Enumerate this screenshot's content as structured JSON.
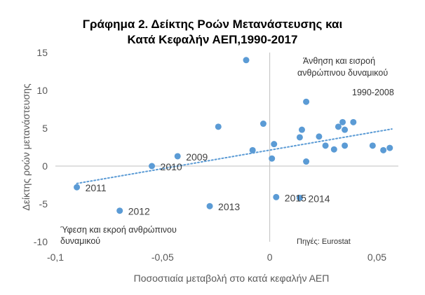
{
  "chart_data": {
    "type": "scatter",
    "title": [
      "Γράφημα 2. Δείκτης Ροών Μετανάστευσης και",
      "Κατά Κεφαλήν ΑΕΠ,1990-2017"
    ],
    "xlabel": "Ποσοστιαία μεταβολή στο κατά κεφαλήν ΑΕΠ",
    "ylabel": "Δείκτης ροών μετανάστευσης",
    "xlim": [
      -0.1,
      0.06
    ],
    "ylim": [
      -10,
      15
    ],
    "x_ticks": [
      -0.1,
      -0.05,
      0,
      0.05
    ],
    "x_tick_labels": [
      "-0,1",
      "-0,05",
      "0",
      "0,05"
    ],
    "y_ticks": [
      -10,
      -5,
      0,
      5,
      10,
      15
    ],
    "y_tick_labels": [
      "-10",
      "-5",
      "0",
      "5",
      "10",
      "15"
    ],
    "grid": false,
    "colors": {
      "points": "#5b9bd5",
      "trendline": "#5b9bd5",
      "axis_lines": "#bfbfbf"
    },
    "points": [
      {
        "x": -0.09,
        "y": -2.8,
        "label": "2011"
      },
      {
        "x": -0.07,
        "y": -5.9,
        "label": "2012"
      },
      {
        "x": -0.055,
        "y": 0.0,
        "label": "2010"
      },
      {
        "x": -0.043,
        "y": 1.3,
        "label": "2009"
      },
      {
        "x": -0.028,
        "y": -5.3,
        "label": "2013"
      },
      {
        "x": 0.003,
        "y": -4.1,
        "label": "2015"
      },
      {
        "x": 0.014,
        "y": -4.2,
        "label": "2014"
      },
      {
        "x": -0.011,
        "y": 14.0,
        "label": ""
      },
      {
        "x": -0.024,
        "y": 5.2,
        "label": ""
      },
      {
        "x": -0.008,
        "y": 2.1,
        "label": ""
      },
      {
        "x": -0.003,
        "y": 5.6,
        "label": ""
      },
      {
        "x": 0.001,
        "y": 1.0,
        "label": ""
      },
      {
        "x": 0.002,
        "y": 2.9,
        "label": ""
      },
      {
        "x": 0.014,
        "y": 3.8,
        "label": ""
      },
      {
        "x": 0.015,
        "y": 4.8,
        "label": ""
      },
      {
        "x": 0.017,
        "y": 8.5,
        "label": ""
      },
      {
        "x": 0.017,
        "y": 0.6,
        "label": ""
      },
      {
        "x": 0.023,
        "y": 3.9,
        "label": ""
      },
      {
        "x": 0.026,
        "y": 2.7,
        "label": ""
      },
      {
        "x": 0.03,
        "y": 2.2,
        "label": ""
      },
      {
        "x": 0.032,
        "y": 5.2,
        "label": ""
      },
      {
        "x": 0.034,
        "y": 5.8,
        "label": ""
      },
      {
        "x": 0.035,
        "y": 4.8,
        "label": ""
      },
      {
        "x": 0.035,
        "y": 2.7,
        "label": ""
      },
      {
        "x": 0.039,
        "y": 5.8,
        "label": ""
      },
      {
        "x": 0.048,
        "y": 2.7,
        "label": ""
      },
      {
        "x": 0.053,
        "y": 2.1,
        "label": ""
      },
      {
        "x": 0.056,
        "y": 2.4,
        "label": ""
      }
    ],
    "trendline": {
      "style": "dotted",
      "from": {
        "x": -0.09,
        "y": -2.3
      },
      "to": {
        "x": 0.057,
        "y": 4.9
      }
    },
    "annotations": {
      "top_right": [
        "Άνθηση και εισροή",
        "ανθρώπινου δυναμικού"
      ],
      "period": "1990-2008",
      "bottom_left": [
        "Ύφεση και εκροή ανθρώπινου",
        "δυναμικού"
      ],
      "source": "Πηγές: Eurostat"
    }
  }
}
